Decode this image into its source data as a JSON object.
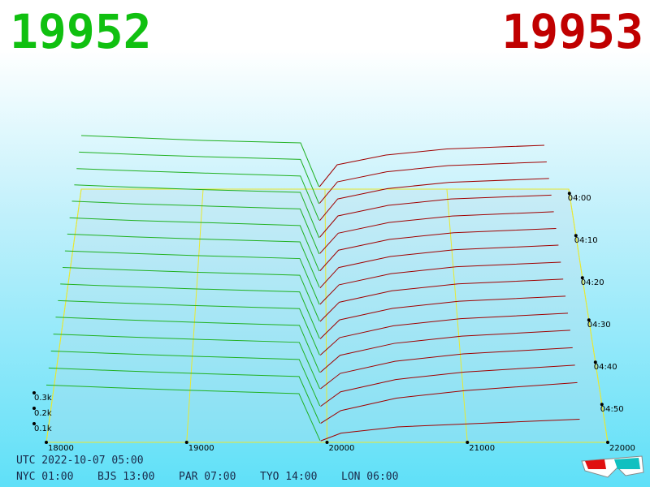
{
  "chart_data": {
    "type": "depth3d",
    "bid_price": "19952",
    "ask_price": "19953",
    "utc": "UTC 2022-10-07 05:00",
    "cities": [
      "NYC 01:00",
      "BJS 13:00",
      "PAR 07:00",
      "TYO 14:00",
      "LON 06:00"
    ],
    "xlim": [
      18000,
      22000
    ],
    "xticks": [
      18000,
      19000,
      20000,
      21000,
      22000
    ],
    "zticks": [
      {
        "value": 100,
        "label": "0.1k"
      },
      {
        "value": 200,
        "label": "0.2k"
      },
      {
        "value": 300,
        "label": "0.3k"
      }
    ],
    "time_ticks": [
      "04:00",
      "04:10",
      "04:20",
      "04:30",
      "04:40",
      "04:50"
    ],
    "bids": {
      "color": "#20b020",
      "x": [
        18000,
        18500,
        19000,
        19800,
        19950
      ],
      "values": [
        [
          440,
          420,
          400,
          380,
          20
        ],
        [
          435,
          415,
          398,
          376,
          18
        ],
        [
          430,
          412,
          396,
          372,
          22
        ],
        [
          428,
          408,
          392,
          370,
          15
        ],
        [
          425,
          405,
          390,
          366,
          20
        ],
        [
          420,
          400,
          386,
          362,
          18
        ],
        [
          418,
          398,
          382,
          360,
          25
        ],
        [
          412,
          394,
          378,
          356,
          20
        ],
        [
          408,
          390,
          374,
          352,
          22
        ],
        [
          404,
          386,
          370,
          348,
          18
        ],
        [
          400,
          382,
          366,
          344,
          20
        ],
        [
          396,
          378,
          362,
          340,
          16
        ],
        [
          390,
          372,
          356,
          334,
          20
        ],
        [
          384,
          366,
          350,
          328,
          18
        ],
        [
          378,
          360,
          344,
          322,
          15
        ],
        [
          372,
          354,
          338,
          316,
          12
        ]
      ]
    },
    "asks": {
      "color": "#a00000",
      "x": [
        19955,
        20100,
        20500,
        21000,
        21800
      ],
      "values": [
        [
          20,
          200,
          280,
          330,
          360
        ],
        [
          22,
          195,
          276,
          326,
          356
        ],
        [
          18,
          190,
          272,
          322,
          352
        ],
        [
          20,
          186,
          268,
          318,
          348
        ],
        [
          24,
          180,
          262,
          312,
          344
        ],
        [
          20,
          176,
          258,
          308,
          340
        ],
        [
          18,
          170,
          252,
          302,
          336
        ],
        [
          22,
          164,
          246,
          296,
          330
        ],
        [
          20,
          158,
          240,
          290,
          324
        ],
        [
          16,
          150,
          232,
          282,
          318
        ],
        [
          20,
          142,
          224,
          274,
          312
        ],
        [
          18,
          134,
          216,
          266,
          306
        ],
        [
          20,
          124,
          206,
          256,
          298
        ],
        [
          15,
          112,
          194,
          244,
          290
        ],
        [
          14,
          98,
          180,
          230,
          282
        ],
        [
          10,
          60,
          100,
          120,
          150
        ]
      ]
    }
  }
}
